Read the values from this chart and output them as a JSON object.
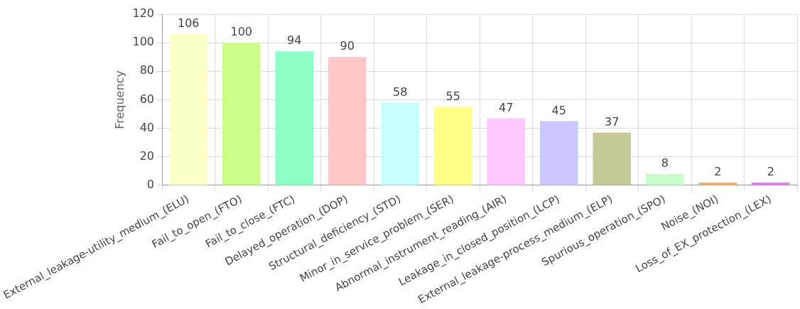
{
  "chart_data": {
    "type": "bar",
    "ylabel": "Frequency",
    "categories": [
      "External_leakage-utility_medium_(ELU)",
      "Fail_to_open_(FTO)",
      "Fail_to_close_(FTC)",
      "Delayed_operation_(DOP)",
      "Structural_deficiency_(STD)",
      "Minor_in_service_problem_(SER)",
      "Abnormal_instrument_reading_(AIR)",
      "Leakage_in_closed_position_(LCP)",
      "External_leakage-process_medium_(ELP)",
      "Spurious_operation_(SPO)",
      "Noise_(NOI)",
      "Loss_of_EX_protection_(LEX)"
    ],
    "values": [
      106,
      100,
      94,
      90,
      58,
      55,
      47,
      45,
      37,
      8,
      2,
      2
    ],
    "colors": [
      "#ffffc8",
      "#ccff88",
      "#8fffc8",
      "#ffc8c8",
      "#c8ffff",
      "#ffff88",
      "#ffc8ff",
      "#c8c8ff",
      "#c8c896",
      "#c8ffc8",
      "#f0b070",
      "#e080f0"
    ],
    "ylim": [
      0,
      120
    ],
    "yticks": [
      0,
      20,
      40,
      60,
      80,
      100,
      120
    ],
    "grid": true,
    "data_labels": true,
    "legend": false
  }
}
